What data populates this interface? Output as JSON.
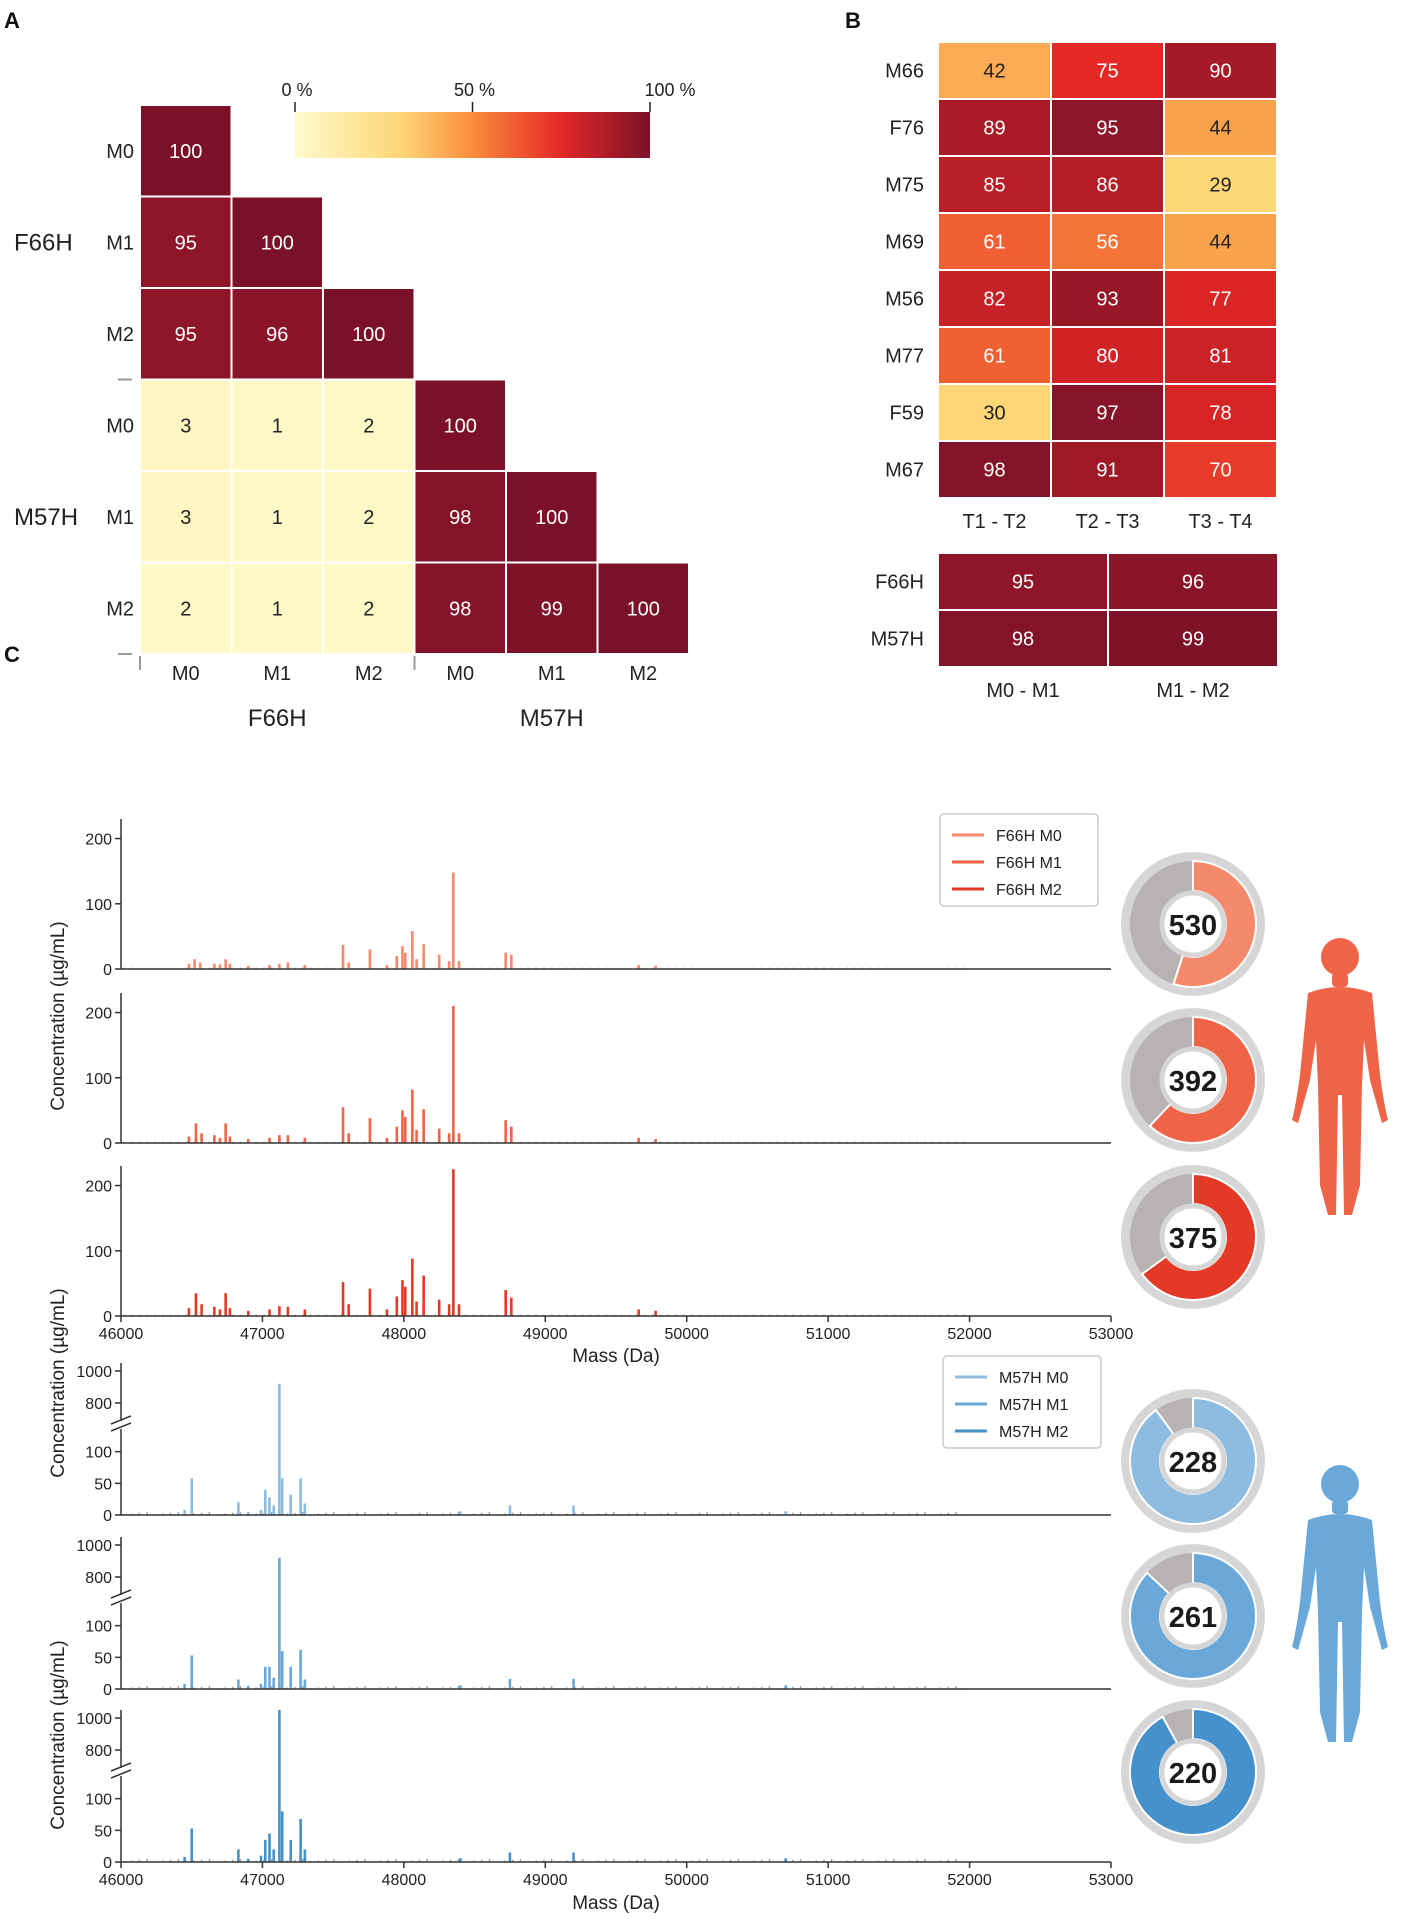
{
  "chart_data": [
    {
      "panel": "A",
      "type": "heatmap",
      "groups": [
        "F66H",
        "M57H"
      ],
      "rows": [
        "M0",
        "M1",
        "M2",
        "M0",
        "M1",
        "M2"
      ],
      "cols": [
        "M0",
        "M1",
        "M2",
        "M0",
        "M1",
        "M2"
      ],
      "values": [
        [
          100,
          null,
          null,
          null,
          null,
          null
        ],
        [
          95,
          100,
          null,
          null,
          null,
          null
        ],
        [
          95,
          96,
          100,
          null,
          null,
          null
        ],
        [
          3,
          1,
          2,
          100,
          null,
          null
        ],
        [
          3,
          1,
          2,
          98,
          100,
          null
        ],
        [
          2,
          1,
          2,
          98,
          99,
          100
        ]
      ],
      "colorbar": {
        "ticks": [
          "0 %",
          "50 %",
          "100 %"
        ],
        "range": [
          0,
          100
        ]
      }
    },
    {
      "panel": "B",
      "type": "heatmap",
      "rows": [
        "M66",
        "F76",
        "M75",
        "M69",
        "M56",
        "M77",
        "F59",
        "M67"
      ],
      "cols": [
        "T1 - T2",
        "T2 - T3",
        "T3 - T4"
      ],
      "values": [
        [
          42,
          75,
          90
        ],
        [
          89,
          95,
          44
        ],
        [
          85,
          86,
          29
        ],
        [
          61,
          56,
          44
        ],
        [
          82,
          93,
          77
        ],
        [
          61,
          80,
          81
        ],
        [
          30,
          97,
          78
        ],
        [
          98,
          91,
          70
        ]
      ]
    },
    {
      "panel": "B",
      "type": "heatmap",
      "rows": [
        "F66H",
        "M57H"
      ],
      "cols": [
        "M0 - M1",
        "M1 - M2"
      ],
      "values": [
        [
          95,
          96
        ],
        [
          98,
          99
        ]
      ]
    },
    {
      "panel": "C",
      "type": "bar",
      "xlabel": "Mass (Da)",
      "ylabel": "Concentration (µg/mL)",
      "xlim": [
        46000,
        53000
      ],
      "xticks": [
        "46000",
        "47000",
        "48000",
        "49000",
        "50000",
        "51000",
        "52000",
        "53000"
      ],
      "yticks": [
        "0",
        "100",
        "200"
      ],
      "ylim": [
        0,
        230
      ],
      "legend": [
        "F66H M0",
        "F66H M1",
        "F66H M2"
      ],
      "series": [
        {
          "name": "F66H M0",
          "color": "#f4896b",
          "total": "530",
          "share": 0.55,
          "peaks": [
            [
              46480,
              8
            ],
            [
              46520,
              15
            ],
            [
              46560,
              10
            ],
            [
              46660,
              8
            ],
            [
              46700,
              7
            ],
            [
              46740,
              15
            ],
            [
              46770,
              8
            ],
            [
              46900,
              5
            ],
            [
              47050,
              6
            ],
            [
              47120,
              8
            ],
            [
              47180,
              10
            ],
            [
              47300,
              6
            ],
            [
              47570,
              37
            ],
            [
              47610,
              10
            ],
            [
              47760,
              30
            ],
            [
              47880,
              6
            ],
            [
              47950,
              20
            ],
            [
              47990,
              35
            ],
            [
              48010,
              25
            ],
            [
              48060,
              58
            ],
            [
              48090,
              15
            ],
            [
              48140,
              38
            ],
            [
              48250,
              22
            ],
            [
              48320,
              12
            ],
            [
              48350,
              148
            ],
            [
              48390,
              12
            ],
            [
              48720,
              25
            ],
            [
              48760,
              22
            ],
            [
              49660,
              6
            ],
            [
              49780,
              5
            ]
          ]
        },
        {
          "name": "F66H M1",
          "color": "#ef6347",
          "total": "392",
          "share": 0.62,
          "peaks": [
            [
              46480,
              10
            ],
            [
              46530,
              30
            ],
            [
              46570,
              15
            ],
            [
              46660,
              12
            ],
            [
              46700,
              8
            ],
            [
              46740,
              30
            ],
            [
              46770,
              10
            ],
            [
              46900,
              6
            ],
            [
              47050,
              8
            ],
            [
              47120,
              12
            ],
            [
              47180,
              12
            ],
            [
              47300,
              8
            ],
            [
              47570,
              55
            ],
            [
              47610,
              15
            ],
            [
              47760,
              38
            ],
            [
              47880,
              8
            ],
            [
              47950,
              25
            ],
            [
              47990,
              50
            ],
            [
              48010,
              40
            ],
            [
              48060,
              82
            ],
            [
              48090,
              20
            ],
            [
              48140,
              52
            ],
            [
              48250,
              22
            ],
            [
              48320,
              15
            ],
            [
              48350,
              210
            ],
            [
              48390,
              15
            ],
            [
              48720,
              35
            ],
            [
              48760,
              25
            ],
            [
              49660,
              8
            ],
            [
              49780,
              6
            ]
          ]
        },
        {
          "name": "F66H M2",
          "color": "#e43927",
          "total": "375",
          "share": 0.65,
          "peaks": [
            [
              46480,
              12
            ],
            [
              46530,
              35
            ],
            [
              46570,
              18
            ],
            [
              46660,
              14
            ],
            [
              46700,
              10
            ],
            [
              46740,
              35
            ],
            [
              46770,
              12
            ],
            [
              46900,
              8
            ],
            [
              47050,
              10
            ],
            [
              47120,
              15
            ],
            [
              47180,
              14
            ],
            [
              47300,
              10
            ],
            [
              47570,
              52
            ],
            [
              47610,
              18
            ],
            [
              47760,
              42
            ],
            [
              47880,
              10
            ],
            [
              47950,
              30
            ],
            [
              47990,
              55
            ],
            [
              48010,
              45
            ],
            [
              48060,
              88
            ],
            [
              48090,
              22
            ],
            [
              48140,
              62
            ],
            [
              48250,
              25
            ],
            [
              48320,
              18
            ],
            [
              48350,
              225
            ],
            [
              48390,
              18
            ],
            [
              48720,
              40
            ],
            [
              48760,
              28
            ],
            [
              49660,
              10
            ],
            [
              49780,
              8
            ]
          ]
        }
      ]
    },
    {
      "panel": "C",
      "type": "bar",
      "xlabel": "Mass (Da)",
      "ylabel": "Concentration (µg/mL)",
      "xlim": [
        46000,
        53000
      ],
      "xticks": [
        "46000",
        "47000",
        "48000",
        "49000",
        "50000",
        "51000",
        "52000",
        "53000"
      ],
      "yticks_lower": [
        "0",
        "50",
        "100"
      ],
      "yticks_upper": [
        "800",
        "1000"
      ],
      "ylim": [
        0,
        1050
      ],
      "axis_break": [
        120,
        700
      ],
      "legend": [
        "M57H M0",
        "M57H M1",
        "M57H M2"
      ],
      "series": [
        {
          "name": "M57H M0",
          "color": "#8dbce0",
          "total": "228",
          "share": 0.9,
          "peaks": [
            [
              46450,
              8
            ],
            [
              46500,
              58
            ],
            [
              46830,
              20
            ],
            [
              46900,
              5
            ],
            [
              46990,
              8
            ],
            [
              47020,
              40
            ],
            [
              47050,
              28
            ],
            [
              47080,
              15
            ],
            [
              47120,
              920
            ],
            [
              47140,
              58
            ],
            [
              47200,
              32
            ],
            [
              47270,
              58
            ],
            [
              47300,
              18
            ],
            [
              48400,
              6
            ],
            [
              48750,
              15
            ],
            [
              49200,
              15
            ],
            [
              50700,
              6
            ]
          ]
        },
        {
          "name": "M57H M1",
          "color": "#6aa8d9",
          "total": "261",
          "share": 0.87,
          "peaks": [
            [
              46450,
              8
            ],
            [
              46500,
              53
            ],
            [
              46830,
              15
            ],
            [
              46900,
              5
            ],
            [
              46990,
              8
            ],
            [
              47020,
              35
            ],
            [
              47050,
              35
            ],
            [
              47080,
              18
            ],
            [
              47120,
              920
            ],
            [
              47140,
              60
            ],
            [
              47200,
              35
            ],
            [
              47270,
              62
            ],
            [
              47300,
              15
            ],
            [
              48400,
              6
            ],
            [
              48750,
              16
            ],
            [
              49200,
              16
            ],
            [
              50700,
              6
            ]
          ]
        },
        {
          "name": "M57H M2",
          "color": "#4591cb",
          "total": "220",
          "share": 0.92,
          "peaks": [
            [
              46450,
              8
            ],
            [
              46500,
              53
            ],
            [
              46830,
              20
            ],
            [
              46900,
              5
            ],
            [
              46990,
              10
            ],
            [
              47020,
              35
            ],
            [
              47050,
              45
            ],
            [
              47080,
              20
            ],
            [
              47120,
              1050
            ],
            [
              47140,
              80
            ],
            [
              47200,
              35
            ],
            [
              47270,
              68
            ],
            [
              47300,
              20
            ],
            [
              48400,
              6
            ],
            [
              48750,
              15
            ],
            [
              49200,
              15
            ],
            [
              50700,
              6
            ]
          ]
        }
      ]
    }
  ],
  "panel_labels": [
    "A",
    "B",
    "C"
  ],
  "colors": {
    "heat_low": "#fffacd",
    "heat_high": "#7a1128",
    "baseline": "#9a9a9a",
    "donut_rest": "#b7b3b3",
    "donut_ring": "#d6d6d6",
    "female_figure": "#ef6347",
    "male_figure": "#6aa8d9"
  },
  "icons": [
    "female-figure-icon",
    "male-figure-icon"
  ]
}
